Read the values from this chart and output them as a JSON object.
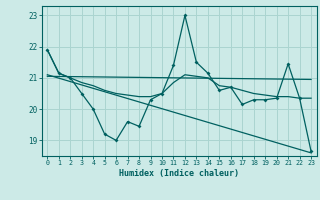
{
  "xlabel": "Humidex (Indice chaleur)",
  "background_color": "#cceae7",
  "grid_color": "#aad4d0",
  "line_color": "#006060",
  "x_values": [
    0,
    1,
    2,
    3,
    4,
    5,
    6,
    7,
    8,
    9,
    10,
    11,
    12,
    13,
    14,
    15,
    16,
    17,
    18,
    19,
    20,
    21,
    22,
    23
  ],
  "line1_y": [
    21.9,
    21.15,
    21.0,
    20.5,
    20.0,
    19.2,
    19.0,
    19.6,
    19.45,
    20.3,
    20.5,
    21.4,
    23.0,
    21.5,
    21.15,
    20.6,
    20.7,
    20.15,
    20.3,
    20.3,
    20.35,
    21.45,
    20.35,
    18.65
  ],
  "line2_y": [
    21.9,
    21.15,
    21.0,
    20.85,
    20.75,
    20.6,
    20.5,
    20.45,
    20.4,
    20.4,
    20.5,
    20.85,
    21.1,
    21.05,
    21.0,
    20.75,
    20.7,
    20.6,
    20.5,
    20.45,
    20.4,
    20.4,
    20.35,
    20.35
  ],
  "trend1_x": [
    0,
    23
  ],
  "trend1_y": [
    21.05,
    20.95
  ],
  "trend2_x": [
    0,
    23
  ],
  "trend2_y": [
    21.1,
    18.6
  ],
  "ylim": [
    18.5,
    23.3
  ],
  "xlim": [
    -0.5,
    23.5
  ],
  "yticks": [
    19,
    20,
    21,
    22,
    23
  ]
}
